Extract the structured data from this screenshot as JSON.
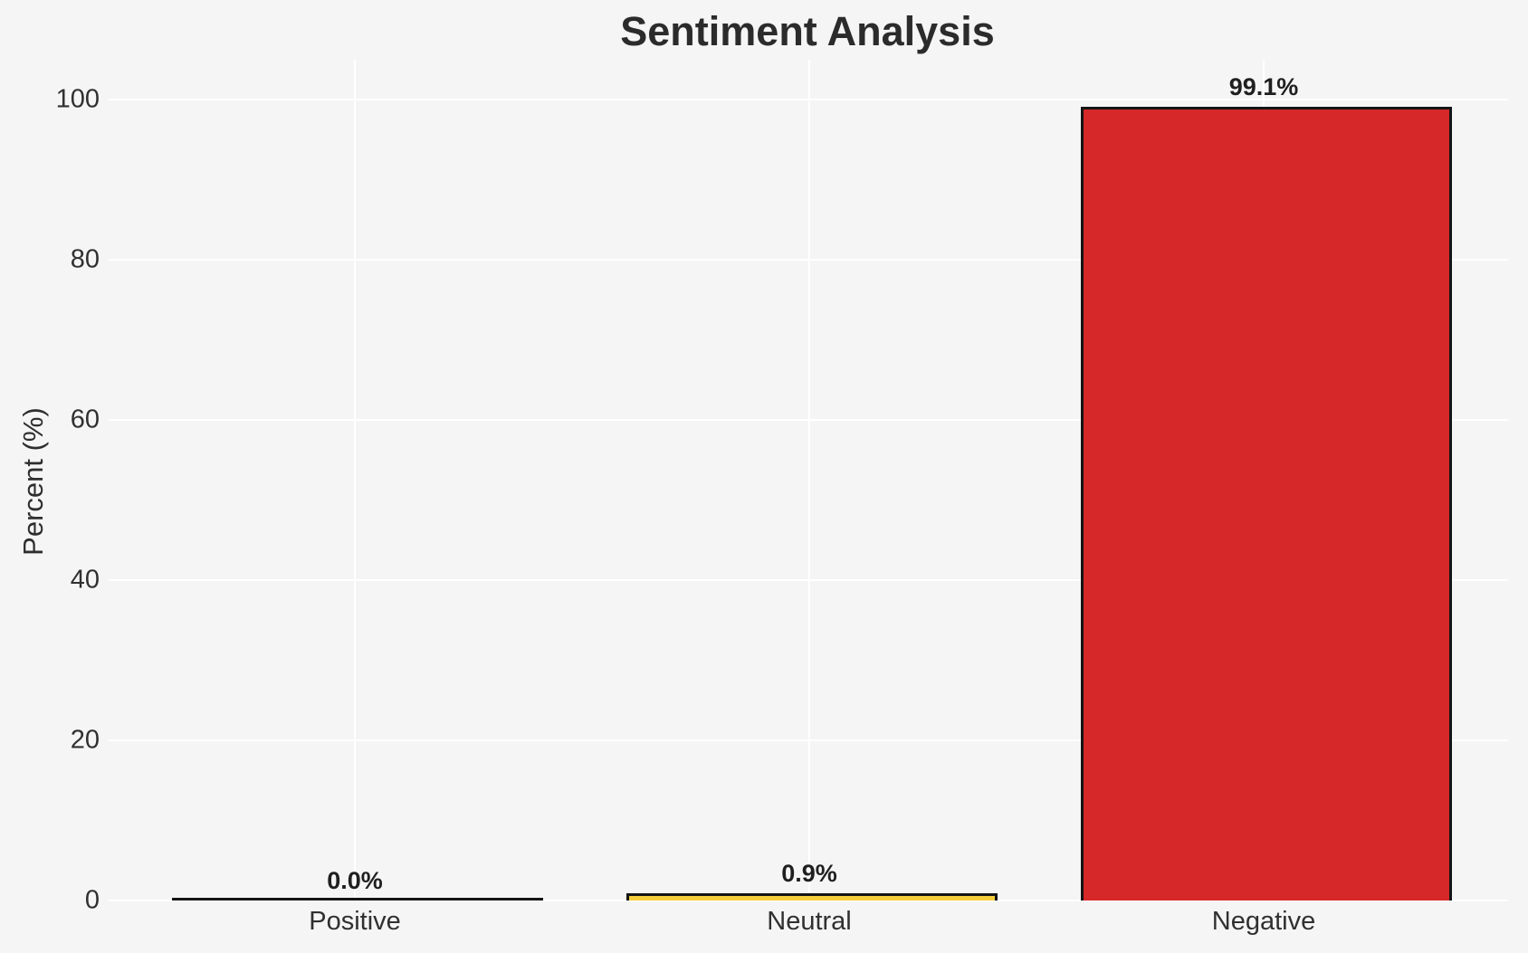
{
  "chart_data": {
    "type": "bar",
    "title": "Sentiment Analysis",
    "ylabel": "Percent (%)",
    "xlabel": "",
    "categories": [
      "Positive",
      "Neutral",
      "Negative"
    ],
    "values": [
      0.0,
      0.9,
      99.1
    ],
    "value_labels": [
      "0.0%",
      "0.9%",
      "99.1%"
    ],
    "yticks": [
      0,
      20,
      40,
      60,
      80,
      100
    ],
    "ytick_labels": [
      "0",
      "20",
      "40",
      "60",
      "80",
      "100"
    ],
    "ylim": [
      0,
      105
    ],
    "grid": "white gridlines on light gray background, horizontal at each ytick and vertical at each category center",
    "legend_position": "none",
    "colors": {
      "background": "#f5f5f6",
      "grid_line": "#ffffff",
      "bar_edge": "#141414",
      "bar_fills": [
        null,
        "#F4CE3B",
        "#D62829"
      ],
      "text": "#2b2b2b"
    }
  }
}
